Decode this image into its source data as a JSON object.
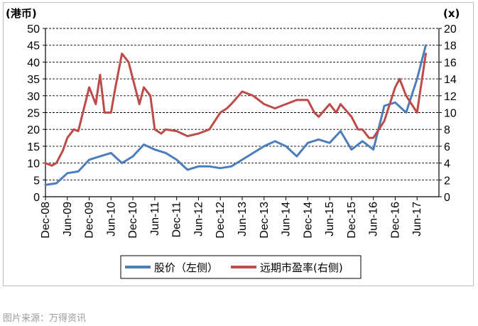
{
  "chart_data": {
    "type": "line",
    "title": "",
    "left_axis_unit": "(港币)",
    "right_axis_unit": "(x)",
    "left_ylim": [
      0,
      50
    ],
    "left_ticks": [
      "0",
      "5",
      "10",
      "15",
      "20",
      "25",
      "30",
      "35",
      "40",
      "45",
      "50"
    ],
    "right_ylim": [
      0,
      20
    ],
    "right_ticks": [
      "0",
      "2",
      "4",
      "6",
      "8",
      "10",
      "12",
      "14",
      "16",
      "18",
      "20"
    ],
    "x_ticks": [
      "Dec-08",
      "Jun-09",
      "Dec-09",
      "Jun-10",
      "Dec-10",
      "Jun-11",
      "Dec-11",
      "Jun-12",
      "Dec-12",
      "Jun-13",
      "Dec-13",
      "Jun-14",
      "Dec-14",
      "Jun-15",
      "Dec-15",
      "Jun-16",
      "Dec-16",
      "Jun-17"
    ],
    "grid": true,
    "legend_position": "bottom",
    "series": [
      {
        "name": "股价（左侧）",
        "axis": "left",
        "color": "#4a7ebb",
        "x": [
          0,
          0.5,
          1,
          1.5,
          2,
          2.5,
          3,
          3.5,
          4,
          4.5,
          5,
          5.5,
          6,
          6.5,
          7,
          7.5,
          8,
          8.5,
          9,
          9.5,
          10,
          10.5,
          11,
          11.5,
          12,
          12.5,
          13,
          13.5,
          14,
          14.5,
          15,
          15.5,
          16,
          16.5,
          17,
          17.4
        ],
        "values": [
          3.5,
          4,
          7,
          7.5,
          11,
          12,
          13,
          10,
          12,
          15.5,
          14,
          13,
          11,
          8,
          9,
          9,
          8.5,
          9,
          11,
          13,
          15,
          16.5,
          15,
          12,
          16,
          17,
          16,
          19.5,
          14,
          16.5,
          14,
          27,
          28,
          25,
          35,
          45
        ]
      },
      {
        "name": "远期市盈率(右侧)",
        "axis": "right",
        "color": "#be4b48",
        "x": [
          0,
          0.3,
          0.5,
          0.8,
          1,
          1.3,
          1.5,
          2,
          2.3,
          2.5,
          2.7,
          3,
          3.2,
          3.5,
          3.8,
          4,
          4.3,
          4.5,
          4.8,
          5,
          5.3,
          5.5,
          6,
          6.5,
          7,
          7.5,
          8,
          8.3,
          8.5,
          9,
          9.5,
          10,
          10.5,
          11,
          11.5,
          12,
          12.3,
          12.5,
          13,
          13.3,
          13.5,
          14,
          14.3,
          14.5,
          14.8,
          15,
          15.5,
          16,
          16.2,
          16.5,
          17,
          17.4
        ],
        "values": [
          4,
          3.7,
          4,
          5.5,
          7,
          8,
          7.8,
          13,
          11,
          14.5,
          10,
          10,
          13,
          17,
          16,
          14,
          11,
          13,
          12,
          8,
          7.5,
          8,
          7.8,
          7.2,
          7.5,
          8,
          10,
          10.5,
          11,
          12.5,
          12,
          11,
          10.5,
          11,
          11.5,
          11.5,
          10,
          9.5,
          11,
          10,
          11,
          9.5,
          8,
          8,
          7,
          7,
          9,
          13,
          14,
          12,
          10,
          17
        ]
      }
    ]
  },
  "source_caption": "图片来源：万得资讯"
}
